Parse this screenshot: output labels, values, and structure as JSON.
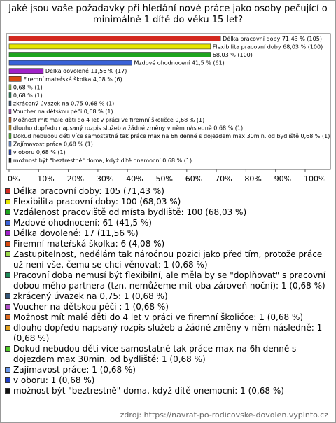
{
  "chart_data": {
    "type": "bar",
    "orientation": "horizontal",
    "title": "Jaké jsou vaše požadavky při hledání nové práce jako osoby pečující o minimálně 1 dítě do věku 15 let?",
    "categories": [
      "Délka pracovní doby: 105 (71,43 %)",
      "Flexibilita pracovní doby: 100 (68,03 %)",
      "Vzdálenost pracoviště od místa bydliště: 100 (68,03 %)",
      "Mzdové ohodnocení: 61 (41,5 %)",
      "Délka dovolené: 17 (11,56 %)",
      "Firemní mateřská školka: 6 (4,08 %)",
      "Zastupitelnost, nedělám tak náročnou pozici jako před tím, protože práce už není vše, čemu se chci věnovat: 1 (0,68 %)",
      "Pracovní doba nemusí být flexibilní, ale měla by se \"doplňovat\" s pracovní dobou mého partnera (tzn. nemůžeme mít oba zároveň noční): 1 (0,68 %)",
      "zkrácený úvazek na 0,75: 1 (0,68 %)",
      "Voucher na dětskou péči : 1 (0,68 %)",
      "Možnost mít malé děti do 4 let v práci ve firemní školičce: 1 (0,68 %)",
      "dlouho dopředu napsaný rozpis služeb a žádné změny v něm následně: 1 (0,68 %)",
      "Dokud nebudou děti více samostatné tak práce max na 6h denně s dojezdem max 30min. od bydliště: 1 (0,68 %)",
      "Zajímavost práce: 1 (0,68 %)",
      "v oboru: 1 (0,68 %)",
      "možnost být \"beztrestně\" doma, když dítě onemocní: 1 (0,68 %)"
    ],
    "values": [
      71.43,
      68.03,
      68.03,
      41.5,
      11.56,
      4.08,
      0.68,
      0.68,
      0.68,
      0.68,
      0.68,
      0.68,
      0.68,
      0.68,
      0.68,
      0.68
    ],
    "value_labels": [
      "Délka pracovní doby 71,43 % (105)",
      "Flexibilita pracovní doby 68,03 % (100)",
      "68,03 % (100)",
      "Mzdové ohodnocení 41,5 % (61)",
      "Délka dovolené 11,56 % (17)",
      "Firemní mateřská školka 4,08 % (6)",
      "0,68 % (1)",
      "0,68 % (1)",
      "zkrácený úvazek na 0,75 0,68 % (1)",
      "Voucher na dětskou péči  0,68 % (1)",
      "Možnost mít malé děti do 4 let v práci ve firemní školičce 0,68 % (1)",
      "dlouho dopředu napsaný rozpis služeb a žádné změny v něm následně 0,68 % (1)",
      "Dokud nebudou děti více samostatné tak práce max na 6h denně s dojezdem max 30min. od bydliště 0,68 % (1)",
      "Zajímavost práce 0,68 % (1)",
      "v oboru 0,68 % (1)",
      "možnost být \"beztrestně\" doma, když dítě onemocní 0,68 % (1)"
    ],
    "colors": [
      "#d42a20",
      "#e6e600",
      "#1ea51e",
      "#3a62d8",
      "#a020c8",
      "#d84a10",
      "#9ad84a",
      "#1e8a5a",
      "#34577a",
      "#b050c8",
      "#e06a20",
      "#e0a020",
      "#50c828",
      "#6a98ea",
      "#2040c8",
      "#111111"
    ],
    "xlim": [
      0,
      100
    ],
    "xticks": [
      {
        "value": 0,
        "label": "0%"
      },
      {
        "value": 10,
        "label": "10%"
      },
      {
        "value": 20,
        "label": "20%"
      },
      {
        "value": 30,
        "label": "30%"
      },
      {
        "value": 40,
        "label": "40%"
      },
      {
        "value": 50,
        "label": "50%"
      },
      {
        "value": 60,
        "label": "60%"
      },
      {
        "value": 70,
        "label": "70%"
      },
      {
        "value": 80,
        "label": "80%"
      },
      {
        "value": 90,
        "label": "90%"
      },
      {
        "value": 100,
        "label": "100%"
      }
    ],
    "source": "zdroj: https://navrat-po-rodicovske-dovolen.vyplnto.cz"
  }
}
